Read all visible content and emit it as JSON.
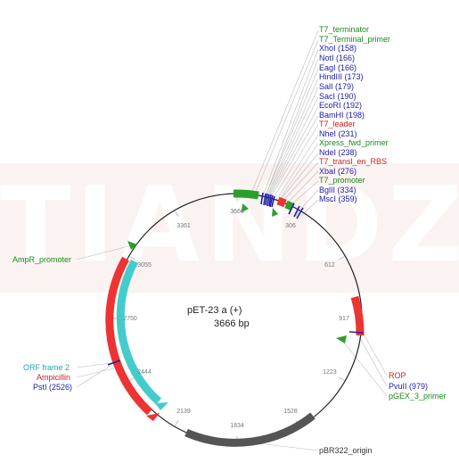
{
  "watermark": "TIANDZ",
  "plasmid": {
    "name": "pET-23 a (+)",
    "size": "3666 bp"
  },
  "ticks": [
    "3666",
    "306",
    "612",
    "917",
    "1223",
    "1528",
    "1834",
    "2139",
    "2444",
    "2750",
    "3055",
    "3361"
  ],
  "labels": {
    "t7_terminator": "T7_terminator",
    "t7_terminal_primer": "T7_Terminal_primer",
    "xhoi": "XhoI (158)",
    "noti": "NotI (166)",
    "eagi": "EagI (166)",
    "hindiii": "HindIII (173)",
    "sali": "SalI (179)",
    "saci": "SacI (190)",
    "ecori": "EcoRI (192)",
    "bamhi": "BamHI (198)",
    "t7_leader": "T7_leader",
    "nhei": "NheI (231)",
    "xpress": "Xpress_fwd_primer",
    "ndei": "NdeI (238)",
    "t7_rbs": "T7_transl_en_RBS",
    "xbai": "XbaI (276)",
    "t7_promoter": "T7_promoter",
    "bglii": "BglII (334)",
    "msci": "MscI (359)",
    "ampr_promoter": "AmpR_promoter",
    "orf": "ORF frame 2",
    "ampicillin": "Ampicillin",
    "psti": "PstI (2526)",
    "rop": "ROP",
    "pvuii": "PvuII (979)",
    "pgex": "pGEX_3_primer",
    "pbr322": "pBR322_origin"
  },
  "colors": {
    "feature_green": "#2aa02a",
    "feature_red": "#ee3333",
    "feature_teal": "#44cccc",
    "feature_gray": "#555555",
    "site_blue": "#2020aa",
    "watermark_band": "#fbf3f1"
  }
}
